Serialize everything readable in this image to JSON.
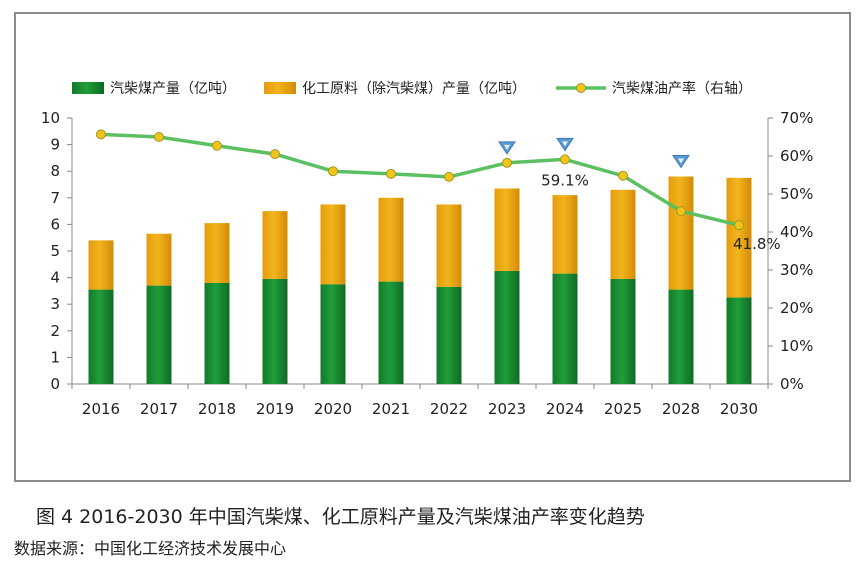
{
  "caption": "图 4  2016-2030 年中国汽柴煤、化工原料产量及汽柴煤油产率变化趋势",
  "source": "数据来源：中国化工经济技术发展中心",
  "colors": {
    "green": "#1f9e3a",
    "orange": "#f2b51c",
    "line": "#5cbf62",
    "marker": "#f2c318",
    "flag": "#5b9bd5"
  },
  "chart_data": {
    "type": "bar",
    "stacked": true,
    "categories": [
      "2016",
      "2017",
      "2018",
      "2019",
      "2020",
      "2021",
      "2022",
      "2023",
      "2024",
      "2025",
      "2028",
      "2030"
    ],
    "series": [
      {
        "name": "汽柴煤产量（亿吨）",
        "type": "bar",
        "axis": "left",
        "values": [
          3.55,
          3.7,
          3.8,
          3.95,
          3.75,
          3.85,
          3.65,
          4.25,
          4.15,
          3.95,
          3.55,
          3.25
        ]
      },
      {
        "name": "化工原料（除汽柴煤）产量（亿吨）",
        "type": "bar",
        "axis": "left",
        "values": [
          1.85,
          1.95,
          2.25,
          2.55,
          3.0,
          3.15,
          3.1,
          3.1,
          2.95,
          3.35,
          4.25,
          4.5
        ]
      },
      {
        "name": "汽柴煤油产率（右轴）",
        "type": "line",
        "axis": "right",
        "values": [
          0.657,
          0.65,
          0.627,
          0.605,
          0.56,
          0.553,
          0.545,
          0.582,
          0.591,
          0.548,
          0.455,
          0.418
        ]
      }
    ],
    "y_left": {
      "min": 0,
      "max": 10,
      "ticks": [
        "0",
        "1",
        "2",
        "3",
        "4",
        "5",
        "6",
        "7",
        "8",
        "9",
        "10"
      ]
    },
    "y_right": {
      "min": 0,
      "max": 0.7,
      "ticks": [
        "0%",
        "10%",
        "20%",
        "30%",
        "40%",
        "50%",
        "60%",
        "70%"
      ]
    },
    "data_labels": [
      {
        "series": 2,
        "index": 8,
        "text": "59.1%"
      },
      {
        "series": 2,
        "index": 11,
        "text": "41.8%"
      }
    ],
    "flags": [
      "2023",
      "2024",
      "2028"
    ],
    "legend_position": "top",
    "grid": false
  }
}
